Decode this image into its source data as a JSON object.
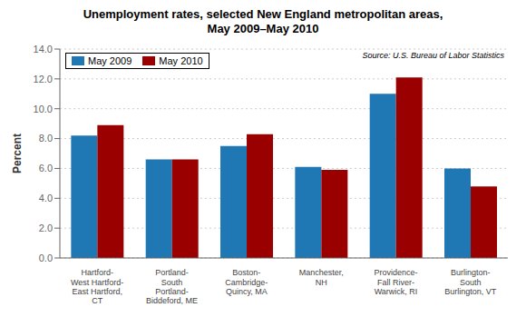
{
  "chart_data": {
    "type": "bar",
    "title": "Unemployment rates, selected New England metropolitan areas,\nMay 2009–May 2010",
    "ylabel": "Percent",
    "annotation": "Source: U.S. Bureau of Labor Statistics",
    "categories": [
      "Hartford-\nWest Hartford-\nEast Hartford,\nCT",
      "Portland-\nSouth\nPortland-\nBiddeford, ME",
      "Boston-\nCambridge-\nQuincy, MA",
      "Manchester,\nNH",
      "Providence-\nFall River-\nWarwick, RI",
      "Burlington-\nSouth\nBurlington, VT"
    ],
    "series": [
      {
        "name": "May 2009",
        "color": "#1F77B4",
        "values": [
          8.2,
          6.6,
          7.5,
          6.1,
          11.0,
          6.0
        ]
      },
      {
        "name": "May 2010",
        "color": "#9B0000",
        "values": [
          8.9,
          6.6,
          8.3,
          5.9,
          12.1,
          4.8
        ]
      }
    ],
    "ylim": [
      0,
      14.0
    ],
    "yticks": [
      {
        "value": 0,
        "label": "0.0"
      },
      {
        "value": 2,
        "label": "2.0"
      },
      {
        "value": 4,
        "label": "4.0"
      },
      {
        "value": 6,
        "label": "6.0"
      },
      {
        "value": 8,
        "label": "8.0"
      },
      {
        "value": 10,
        "label": "10.0"
      },
      {
        "value": 12,
        "label": "12.0"
      },
      {
        "value": 14,
        "label": "14.0"
      }
    ],
    "grid": true,
    "legend": "upper left"
  }
}
